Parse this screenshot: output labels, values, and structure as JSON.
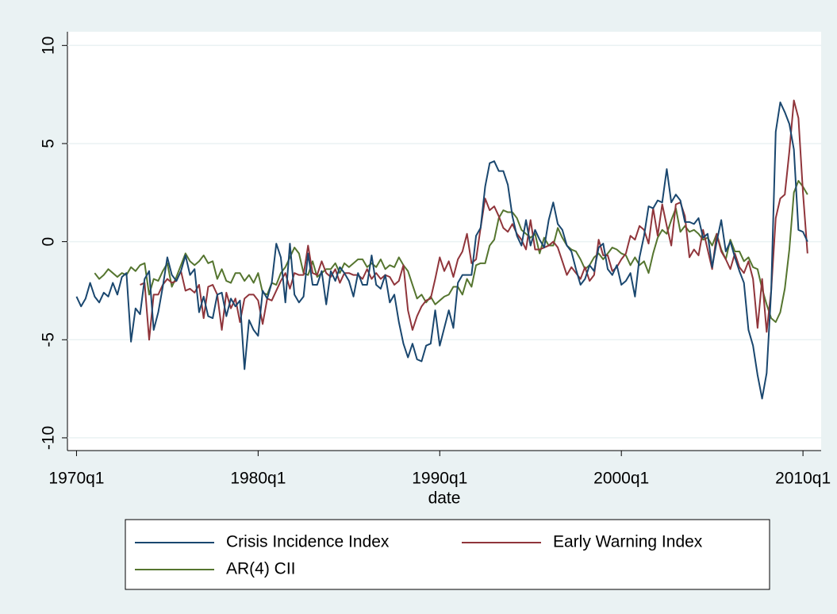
{
  "chart_data": {
    "type": "line",
    "x_label": "date",
    "x": [
      "1970q1",
      "1970q2",
      "1970q3",
      "1970q4",
      "1971q1",
      "1971q2",
      "1971q3",
      "1971q4",
      "1972q1",
      "1972q2",
      "1972q3",
      "1972q4",
      "1973q1",
      "1973q2",
      "1973q3",
      "1973q4",
      "1974q1",
      "1974q2",
      "1974q3",
      "1974q4",
      "1975q1",
      "1975q2",
      "1975q3",
      "1975q4",
      "1976q1",
      "1976q2",
      "1976q3",
      "1976q4",
      "1977q1",
      "1977q2",
      "1977q3",
      "1977q4",
      "1978q1",
      "1978q2",
      "1978q3",
      "1978q4",
      "1979q1",
      "1979q2",
      "1979q3",
      "1979q4",
      "1980q1",
      "1980q2",
      "1980q3",
      "1980q4",
      "1981q1",
      "1981q2",
      "1981q3",
      "1981q4",
      "1982q1",
      "1982q2",
      "1982q3",
      "1982q4",
      "1983q1",
      "1983q2",
      "1983q3",
      "1983q4",
      "1984q1",
      "1984q2",
      "1984q3",
      "1984q4",
      "1985q1",
      "1985q2",
      "1985q3",
      "1985q4",
      "1986q1",
      "1986q2",
      "1986q3",
      "1986q4",
      "1987q1",
      "1987q2",
      "1987q3",
      "1987q4",
      "1988q1",
      "1988q2",
      "1988q3",
      "1988q4",
      "1989q1",
      "1989q2",
      "1989q3",
      "1989q4",
      "1990q1",
      "1990q2",
      "1990q3",
      "1990q4",
      "1991q1",
      "1991q2",
      "1991q3",
      "1991q4",
      "1992q1",
      "1992q2",
      "1992q3",
      "1992q4",
      "1993q1",
      "1993q2",
      "1993q3",
      "1993q4",
      "1994q1",
      "1994q2",
      "1994q3",
      "1994q4",
      "1995q1",
      "1995q2",
      "1995q3",
      "1995q4",
      "1996q1",
      "1996q2",
      "1996q3",
      "1996q4",
      "1997q1",
      "1997q2",
      "1997q3",
      "1997q4",
      "1998q1",
      "1998q2",
      "1998q3",
      "1998q4",
      "1999q1",
      "1999q2",
      "1999q3",
      "1999q4",
      "2000q1",
      "2000q2",
      "2000q3",
      "2000q4",
      "2001q1",
      "2001q2",
      "2001q3",
      "2001q4",
      "2002q1",
      "2002q2",
      "2002q3",
      "2002q4",
      "2003q1",
      "2003q2",
      "2003q3",
      "2003q4",
      "2004q1",
      "2004q2",
      "2004q3",
      "2004q4",
      "2005q1",
      "2005q2",
      "2005q3",
      "2005q4",
      "2006q1",
      "2006q2",
      "2006q3",
      "2006q4",
      "2007q1",
      "2007q2",
      "2007q3",
      "2007q4",
      "2008q1",
      "2008q2",
      "2008q3",
      "2008q4",
      "2009q1",
      "2009q2",
      "2009q3",
      "2009q4",
      "2010q1",
      "2010q2"
    ],
    "series": [
      {
        "name": "Crisis Incidence Index",
        "color": "#1a476f",
        "values": [
          -2.8,
          -3.3,
          -2.9,
          -2.1,
          -2.8,
          -3.1,
          -2.6,
          -2.8,
          -2.1,
          -2.7,
          -1.8,
          -1.6,
          -5.1,
          -3.4,
          -3.7,
          -1.9,
          -1.5,
          -4.5,
          -3.6,
          -2.3,
          -0.8,
          -1.7,
          -2.0,
          -1.5,
          -0.7,
          -1.7,
          -1.4,
          -3.6,
          -2.8,
          -3.8,
          -3.9,
          -2.7,
          -2.6,
          -3.8,
          -2.9,
          -3.3,
          -3.0,
          -6.5,
          -4.0,
          -4.5,
          -4.8,
          -2.5,
          -2.9,
          -2.1,
          -0.1,
          -0.8,
          -3.1,
          -0.1,
          -2.7,
          -3.1,
          -2.8,
          -0.6,
          -2.2,
          -2.2,
          -1.5,
          -3.2,
          -1.5,
          -2.0,
          -1.3,
          -1.6,
          -2.0,
          -2.8,
          -1.6,
          -2.2,
          -2.2,
          -0.7,
          -2.2,
          -2.4,
          -1.7,
          -3.1,
          -2.7,
          -4.1,
          -5.2,
          -5.9,
          -5.2,
          -6.0,
          -6.1,
          -5.3,
          -5.2,
          -3.5,
          -5.3,
          -4.4,
          -3.5,
          -4.4,
          -2.1,
          -1.7,
          -1.7,
          -1.7,
          0.3,
          0.7,
          2.8,
          4.0,
          4.1,
          3.6,
          3.6,
          2.9,
          1.3,
          0.3,
          -0.2,
          1.1,
          -0.2,
          0.6,
          0.1,
          -0.3,
          1.1,
          2.0,
          0.9,
          0.6,
          -0.2,
          -0.5,
          -1.4,
          -2.2,
          -1.9,
          -1.2,
          -1.5,
          -0.3,
          -0.1,
          -1.4,
          -1.7,
          -1.2,
          -2.2,
          -2.0,
          -1.6,
          -2.8,
          -0.8,
          0.3,
          1.8,
          1.7,
          2.1,
          2.0,
          3.7,
          2.0,
          2.4,
          2.1,
          1.0,
          1.0,
          0.9,
          1.2,
          0.2,
          0.4,
          -1.3,
          0.0,
          1.1,
          -0.5,
          0.0,
          -0.8,
          -1.5,
          -2.1,
          -4.5,
          -5.3,
          -6.8,
          -8.0,
          -6.7,
          -2.5,
          5.6,
          7.1,
          6.6,
          6.0,
          4.7,
          0.6,
          0.5,
          0.0
        ]
      },
      {
        "name": "Early Warning Index",
        "color": "#90353b",
        "values": [
          null,
          null,
          null,
          null,
          null,
          null,
          null,
          null,
          null,
          null,
          null,
          null,
          null,
          null,
          -2.2,
          -2.1,
          -5.0,
          -2.7,
          -2.7,
          -2.2,
          -1.9,
          -2.1,
          -2.0,
          -1.5,
          -2.5,
          -2.4,
          -2.6,
          -2.2,
          -3.9,
          -2.3,
          -2.2,
          -2.7,
          -4.5,
          -2.6,
          -3.4,
          -2.9,
          -4.1,
          -2.9,
          -2.7,
          -2.7,
          -3.0,
          -4.2,
          -2.9,
          -3.0,
          -2.5,
          -2.0,
          -1.6,
          -2.4,
          -1.6,
          -1.7,
          -1.7,
          -0.2,
          -1.6,
          -1.7,
          -1.0,
          -1.6,
          -1.8,
          -1.4,
          -2.1,
          -1.6,
          -1.6,
          -1.7,
          -1.7,
          -1.9,
          -1.4,
          -1.9,
          -1.6,
          -1.9,
          -1.7,
          -1.8,
          -2.2,
          -2.0,
          -1.2,
          -3.5,
          -4.5,
          -3.8,
          -3.3,
          -3.0,
          -2.9,
          -1.9,
          -0.8,
          -1.5,
          -1.0,
          -1.8,
          -0.9,
          -0.5,
          0.4,
          -1.1,
          -0.9,
          0.7,
          2.2,
          1.6,
          1.8,
          1.3,
          0.7,
          0.5,
          0.9,
          0.4,
          0.1,
          -0.4,
          1.1,
          -0.4,
          -0.4,
          -0.3,
          -0.2,
          0.0,
          -0.3,
          -1.0,
          -1.7,
          -1.3,
          -1.6,
          -1.9,
          -1.3,
          -2.0,
          -1.7,
          0.1,
          -0.7,
          -0.7,
          -1.5,
          -1.3,
          -0.9,
          -0.6,
          0.3,
          0.1,
          0.8,
          0.6,
          -0.1,
          1.7,
          0.3,
          1.9,
          0.8,
          -0.2,
          1.9,
          2.0,
          1.3,
          -0.8,
          -0.4,
          -0.7,
          0.6,
          -0.4,
          -1.4,
          0.4,
          -0.5,
          -0.9,
          -1.4,
          -0.6,
          -1.3,
          -1.6,
          -1.0,
          -1.9,
          -4.4,
          -1.9,
          -4.6,
          -2.5,
          1.2,
          2.2,
          2.4,
          4.6,
          7.2,
          6.3,
          2.5,
          -0.6
        ]
      },
      {
        "name": "AR(4) CII",
        "color": "#55752f",
        "values": [
          null,
          null,
          null,
          null,
          -1.6,
          -1.9,
          -1.7,
          -1.4,
          -1.6,
          -1.8,
          -1.6,
          -1.7,
          -1.3,
          -1.5,
          -1.2,
          -1.1,
          -2.7,
          -1.9,
          -2.0,
          -1.5,
          -1.1,
          -2.3,
          -1.8,
          -1.2,
          -0.6,
          -1.0,
          -1.2,
          -1.0,
          -0.7,
          -1.1,
          -1.0,
          -1.9,
          -1.4,
          -2.0,
          -2.1,
          -1.6,
          -1.6,
          -2.0,
          -1.7,
          -2.1,
          -1.6,
          -2.6,
          -2.7,
          -2.1,
          -2.2,
          -1.6,
          -1.3,
          -0.8,
          -0.3,
          -0.6,
          -1.6,
          -1.7,
          -1.0,
          -1.8,
          -1.6,
          -1.4,
          -1.4,
          -1.1,
          -1.6,
          -1.1,
          -1.3,
          -1.1,
          -0.9,
          -0.9,
          -1.3,
          -1.1,
          -1.3,
          -0.9,
          -1.4,
          -1.2,
          -1.3,
          -0.8,
          -1.2,
          -1.5,
          -2.2,
          -2.9,
          -2.7,
          -3.1,
          -2.8,
          -3.2,
          -3.0,
          -2.8,
          -2.7,
          -2.3,
          -2.3,
          -2.7,
          -1.9,
          -2.3,
          -1.2,
          -1.1,
          -1.1,
          -0.2,
          0.1,
          1.2,
          1.6,
          1.5,
          1.5,
          1.2,
          0.6,
          0.4,
          0.2,
          0.4,
          -0.6,
          0.2,
          -0.2,
          -0.2,
          0.7,
          0.2,
          -0.2,
          -0.4,
          -0.5,
          -0.9,
          -1.4,
          -1.2,
          -0.8,
          -0.6,
          -0.9,
          -0.6,
          -0.3,
          -0.4,
          -0.6,
          -0.7,
          -1.2,
          -0.8,
          -1.2,
          -1.0,
          -1.6,
          -0.6,
          0.2,
          0.6,
          0.4,
          1.1,
          1.7,
          0.5,
          0.8,
          0.5,
          0.6,
          0.4,
          0.1,
          0.2,
          -0.2,
          0.4,
          -0.4,
          -0.9,
          0.1,
          -0.5,
          -0.5,
          -1.0,
          -0.8,
          -1.3,
          -1.4,
          -2.4,
          -3.2,
          -3.9,
          -4.1,
          -3.6,
          -2.4,
          -0.4,
          2.5,
          3.1,
          2.8,
          2.4
        ]
      }
    ],
    "xlim": [
      "1969q3",
      "2011q1"
    ],
    "xticks": [
      "1970q1",
      "1980q1",
      "1990q1",
      "2000q1",
      "2010q1"
    ],
    "ylim": [
      -10.65,
      10.7
    ],
    "yticks": [
      -10,
      -5,
      0,
      5,
      10
    ],
    "grid": true,
    "legend": "bottom"
  }
}
